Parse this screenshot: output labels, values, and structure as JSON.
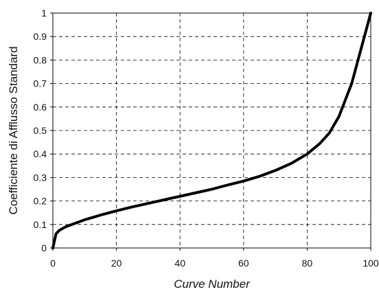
{
  "chart_data": {
    "type": "line",
    "title": "",
    "xlabel": "Curve Number",
    "ylabel": "Coefficiente di Afflusso Standard",
    "xlim": [
      0,
      100
    ],
    "ylim": [
      0,
      1
    ],
    "x_ticks": [
      "0",
      "20",
      "40",
      "60",
      "80",
      "100"
    ],
    "y_ticks": [
      "0",
      "0.1",
      "0.2",
      "0.3",
      "0.4",
      "0.5",
      "0.6",
      "0.7",
      "0.8",
      "0.9",
      "1"
    ],
    "grid": true,
    "grid_style": "dashed",
    "series": [
      {
        "color": "#000000",
        "x": [
          0,
          0.5,
          1,
          2,
          4,
          6,
          10,
          15,
          20,
          25,
          30,
          35,
          40,
          45,
          50,
          55,
          60,
          65,
          70,
          75,
          80,
          84,
          87,
          90,
          92,
          94,
          95,
          96,
          97,
          98,
          99,
          100
        ],
        "y": [
          0,
          0.03,
          0.06,
          0.075,
          0.09,
          0.1,
          0.12,
          0.14,
          0.158,
          0.175,
          0.19,
          0.205,
          0.22,
          0.235,
          0.25,
          0.268,
          0.285,
          0.305,
          0.33,
          0.36,
          0.4,
          0.445,
          0.49,
          0.56,
          0.63,
          0.7,
          0.75,
          0.8,
          0.85,
          0.9,
          0.95,
          1
        ]
      }
    ]
  }
}
